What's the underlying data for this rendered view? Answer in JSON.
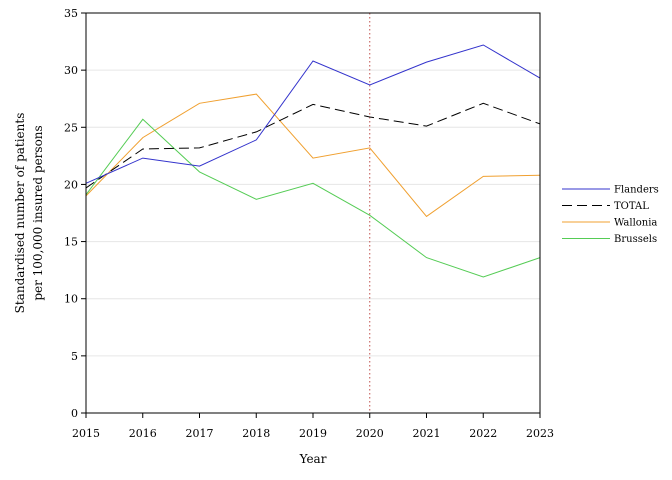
{
  "chart_data": {
    "type": "line",
    "xlabel": "Year",
    "ylabel": [
      "Standardised number of patients",
      "per 100,000 insured persons"
    ],
    "x": [
      2015,
      2016,
      2017,
      2018,
      2019,
      2020,
      2021,
      2022,
      2023
    ],
    "xlim": [
      2015,
      2023
    ],
    "ylim": [
      0,
      35
    ],
    "yticks": [
      0,
      5,
      10,
      15,
      20,
      25,
      30,
      35
    ],
    "grid": "horizontal",
    "reference_line": {
      "x": 2020,
      "color": "#c0504d",
      "style": "dotted"
    },
    "legend_position": "right",
    "series": [
      {
        "name": "Flanders",
        "color": "#3333cc",
        "dash": "solid",
        "values": [
          20.1,
          22.3,
          21.6,
          23.9,
          30.8,
          28.7,
          30.7,
          32.2,
          29.3
        ]
      },
      {
        "name": "TOTAL",
        "color": "#000000",
        "dash": "dashed",
        "values": [
          19.7,
          23.1,
          23.2,
          24.6,
          27.0,
          25.9,
          25.1,
          27.1,
          25.3
        ]
      },
      {
        "name": "Wallonia",
        "color": "#f0a030",
        "dash": "solid",
        "values": [
          19.0,
          24.1,
          27.1,
          27.9,
          22.3,
          23.2,
          17.2,
          20.7,
          20.8
        ]
      },
      {
        "name": "Brussels",
        "color": "#55cc55",
        "dash": "solid",
        "values": [
          19.1,
          25.7,
          21.1,
          18.7,
          20.1,
          17.3,
          13.6,
          11.9,
          13.6
        ]
      }
    ]
  }
}
